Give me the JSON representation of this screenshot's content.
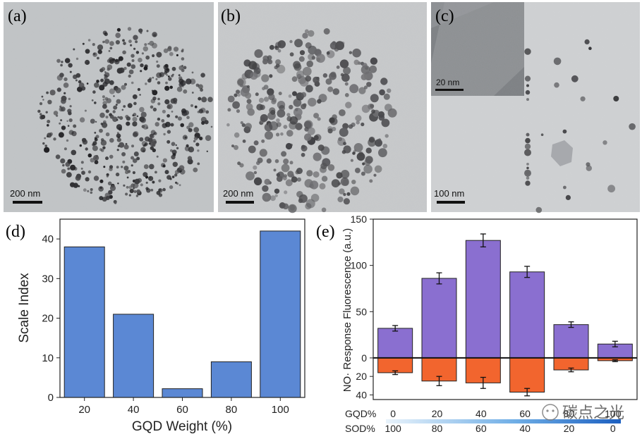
{
  "panels": {
    "a": {
      "label": "(a)",
      "scale_bar": "200 nm"
    },
    "b": {
      "label": "(b)",
      "scale_bar": "200 nm"
    },
    "c": {
      "label": "(c)",
      "scale_bar": "100 nm",
      "inset_scale_bar": "20 nm"
    }
  },
  "watermark": "碳点之光",
  "chart_data": [
    {
      "panel": "(d)",
      "type": "bar",
      "categories": [
        "20",
        "40",
        "60",
        "80",
        "100"
      ],
      "values": [
        38,
        21,
        2.2,
        9,
        42
      ],
      "xlabel": "GQD Weight (%)",
      "ylabel": "Scale Index",
      "ylim": [
        0,
        45
      ],
      "yticks": [
        "0",
        "10",
        "20",
        "30",
        "40"
      ],
      "color": "#5b88d4"
    },
    {
      "panel": "(e)",
      "type": "bar",
      "categories_gqd": [
        "0",
        "20",
        "40",
        "60",
        "80",
        "100"
      ],
      "categories_sod": [
        "100",
        "80",
        "60",
        "40",
        "20",
        "0"
      ],
      "gqd_row_label": "GQD%",
      "sod_row_label": "SOD%",
      "ylabel": "NO· Response  Fluorescence (a.u.)",
      "ylim": [
        -45,
        150
      ],
      "yticks_upper": [
        "0",
        "50",
        "100",
        "150"
      ],
      "yticks_lower": [
        "20",
        "40"
      ],
      "series": [
        {
          "name": "Fluorescence",
          "color": "#8a6fd0",
          "values": [
            32,
            86,
            127,
            93,
            36,
            15
          ],
          "errors": [
            3,
            6,
            7,
            6,
            3,
            3
          ]
        },
        {
          "name": "NO· Response",
          "color": "#f2652e",
          "values": [
            -16,
            -25,
            -27,
            -37,
            -13,
            -3
          ],
          "errors": [
            2,
            5,
            6,
            4,
            2,
            1
          ]
        }
      ]
    }
  ]
}
